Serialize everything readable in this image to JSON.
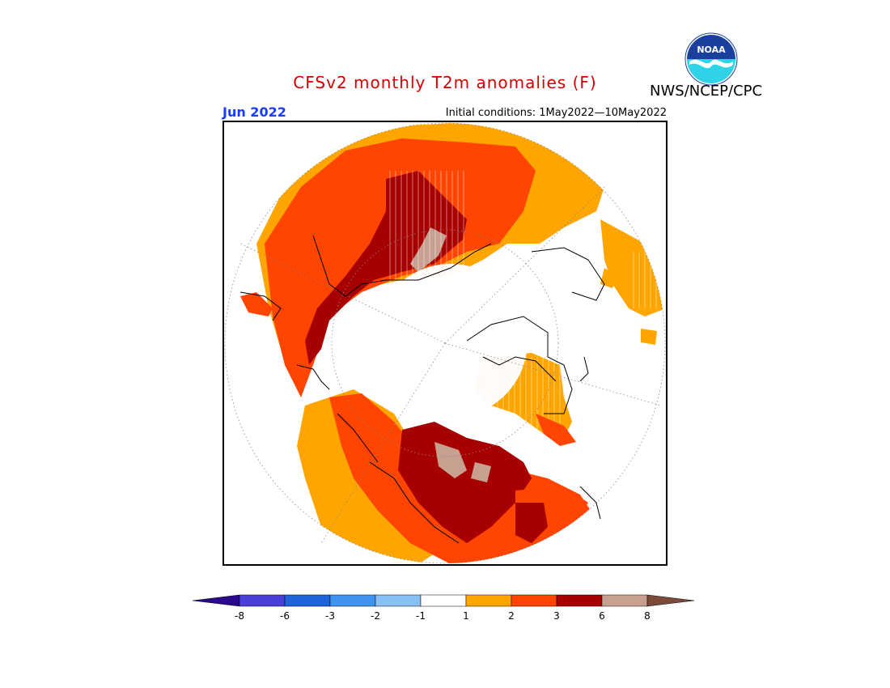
{
  "title": "CFSv2 monthly T2m anomalies (F)",
  "agency": "NWS/NCEP/CPC",
  "logo_text": "NOAA",
  "month_label": "Jun 2022",
  "initial_conditions": "Initial conditions: 1May2022—10May2022",
  "colors": {
    "title": "#d40000",
    "month": "#1a3cff",
    "anomaly_1_2": "#ffa500",
    "anomaly_2_3": "#ff4500",
    "anomaly_3_6": "#a60000",
    "anomaly_6_8": "#c8a090",
    "anomaly_gt8": "#7a4a3a",
    "anomaly_lt_m8": "#2a0a8a"
  },
  "colorbar": {
    "labels": [
      "-8",
      "-6",
      "-3",
      "-2",
      "-1",
      "1",
      "2",
      "3",
      "6",
      "8"
    ],
    "colors": [
      "#2a0a8a",
      "#4b3fd6",
      "#1e64d8",
      "#3f93f0",
      "#86c0f5",
      "#ffffff",
      "#ffa500",
      "#ff4500",
      "#a60000",
      "#c8a090",
      "#7a4a3a"
    ]
  }
}
